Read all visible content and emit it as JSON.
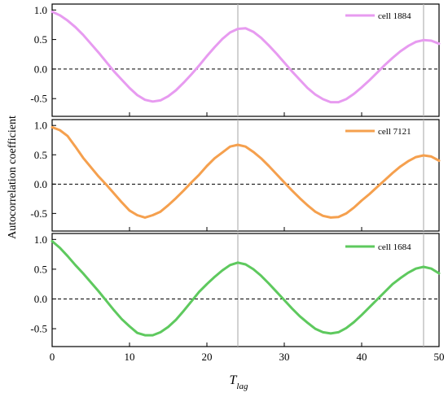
{
  "chart_data": {
    "type": "line",
    "xlabel": "T",
    "xlabel_sub": "lag",
    "ylabel": "Autocorrelation coefficient",
    "xlim": [
      0,
      50
    ],
    "x_ticks": [
      "0",
      "10",
      "20",
      "30",
      "40",
      "50"
    ],
    "ylim": [
      -0.8,
      1.1
    ],
    "y_ticks": [
      "-0.5",
      "0.0",
      "0.5",
      "1.0"
    ],
    "reference_lines_x": [
      24,
      48
    ],
    "zero_line": "dashed",
    "legend_position": "top-right",
    "panels": [
      {
        "name": "cell 1884",
        "color": "#e79bf0",
        "x": [
          0,
          1,
          2,
          3,
          4,
          5,
          6,
          7,
          8,
          9,
          10,
          11,
          12,
          13,
          14,
          15,
          16,
          17,
          18,
          19,
          20,
          21,
          22,
          23,
          24,
          25,
          26,
          27,
          28,
          29,
          30,
          31,
          32,
          33,
          34,
          35,
          36,
          37,
          38,
          39,
          40,
          41,
          42,
          43,
          44,
          45,
          46,
          47,
          48,
          49,
          50
        ],
        "values": [
          0.97,
          0.91,
          0.82,
          0.71,
          0.58,
          0.43,
          0.28,
          0.12,
          -0.04,
          -0.18,
          -0.32,
          -0.44,
          -0.52,
          -0.55,
          -0.53,
          -0.46,
          -0.36,
          -0.23,
          -0.09,
          0.06,
          0.22,
          0.37,
          0.51,
          0.62,
          0.68,
          0.69,
          0.63,
          0.53,
          0.4,
          0.26,
          0.11,
          -0.04,
          -0.18,
          -0.32,
          -0.43,
          -0.51,
          -0.56,
          -0.56,
          -0.51,
          -0.42,
          -0.31,
          -0.19,
          -0.06,
          0.07,
          0.19,
          0.3,
          0.39,
          0.46,
          0.49,
          0.48,
          0.43
        ]
      },
      {
        "name": "cell 7121",
        "color": "#f5a04e",
        "x": [
          0,
          1,
          2,
          3,
          4,
          5,
          6,
          7,
          8,
          9,
          10,
          11,
          12,
          13,
          14,
          15,
          16,
          17,
          18,
          19,
          20,
          21,
          22,
          23,
          24,
          25,
          26,
          27,
          28,
          29,
          30,
          31,
          32,
          33,
          34,
          35,
          36,
          37,
          38,
          39,
          40,
          41,
          42,
          43,
          44,
          45,
          46,
          47,
          48,
          49,
          50
        ],
        "values": [
          0.97,
          0.92,
          0.82,
          0.64,
          0.45,
          0.29,
          0.13,
          -0.01,
          -0.16,
          -0.31,
          -0.45,
          -0.53,
          -0.57,
          -0.53,
          -0.47,
          -0.36,
          -0.24,
          -0.11,
          0.03,
          0.16,
          0.31,
          0.44,
          0.54,
          0.64,
          0.67,
          0.64,
          0.55,
          0.44,
          0.31,
          0.17,
          0.03,
          -0.11,
          -0.24,
          -0.36,
          -0.47,
          -0.54,
          -0.57,
          -0.56,
          -0.5,
          -0.4,
          -0.28,
          -0.17,
          -0.05,
          0.07,
          0.19,
          0.3,
          0.39,
          0.46,
          0.49,
          0.47,
          0.4
        ]
      },
      {
        "name": "cell 1684",
        "color": "#5ec95e",
        "x": [
          0,
          1,
          2,
          3,
          4,
          5,
          6,
          7,
          8,
          9,
          10,
          11,
          12,
          13,
          14,
          15,
          16,
          17,
          18,
          19,
          20,
          21,
          22,
          23,
          24,
          25,
          26,
          27,
          28,
          29,
          30,
          31,
          32,
          33,
          34,
          35,
          36,
          37,
          38,
          39,
          40,
          41,
          42,
          43,
          44,
          45,
          46,
          47,
          48,
          49,
          50
        ],
        "values": [
          0.97,
          0.86,
          0.72,
          0.57,
          0.43,
          0.28,
          0.13,
          -0.03,
          -0.19,
          -0.34,
          -0.46,
          -0.57,
          -0.61,
          -0.61,
          -0.56,
          -0.47,
          -0.35,
          -0.2,
          -0.04,
          0.12,
          0.25,
          0.37,
          0.48,
          0.57,
          0.61,
          0.58,
          0.5,
          0.39,
          0.26,
          0.12,
          -0.02,
          -0.16,
          -0.29,
          -0.4,
          -0.5,
          -0.56,
          -0.58,
          -0.56,
          -0.49,
          -0.39,
          -0.27,
          -0.14,
          -0.01,
          0.12,
          0.25,
          0.35,
          0.44,
          0.51,
          0.54,
          0.51,
          0.43
        ]
      }
    ]
  }
}
